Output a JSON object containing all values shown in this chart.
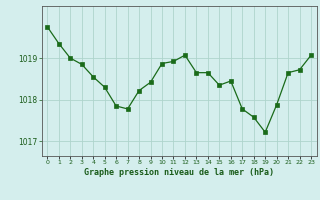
{
  "x": [
    0,
    1,
    2,
    3,
    4,
    5,
    6,
    7,
    8,
    9,
    10,
    11,
    12,
    13,
    14,
    15,
    16,
    17,
    18,
    19,
    20,
    21,
    22,
    23
  ],
  "y": [
    1019.75,
    1019.35,
    1019.0,
    1018.85,
    1018.55,
    1018.3,
    1017.85,
    1017.78,
    1018.22,
    1018.42,
    1018.87,
    1018.92,
    1019.07,
    1018.65,
    1018.65,
    1018.35,
    1018.45,
    1017.78,
    1017.58,
    1017.22,
    1017.88,
    1018.65,
    1018.72,
    1019.07
  ],
  "line_color": "#1a6b1a",
  "marker_color": "#1a6b1a",
  "bg_color": "#d4eeed",
  "grid_color": "#aed4cc",
  "axis_label_color": "#1a5c1a",
  "tick_label_color": "#1a5c1a",
  "xlabel": "Graphe pression niveau de la mer (hPa)",
  "yticks": [
    1017,
    1018,
    1019
  ],
  "ylim": [
    1016.65,
    1020.25
  ],
  "xlim": [
    -0.5,
    23.5
  ]
}
